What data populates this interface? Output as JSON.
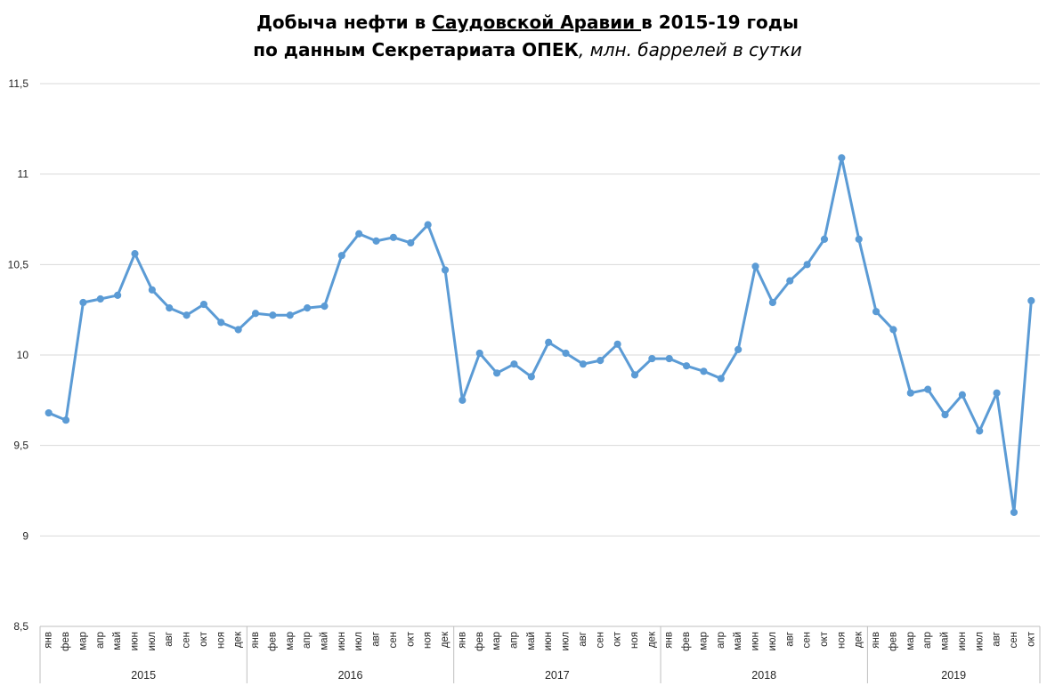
{
  "title": {
    "line1_a": "Добыча нефти в ",
    "line1_b": "Саудовской Аравии ",
    "line1_c": "в 2015-19 годы",
    "line2_a": "по данным Секретариата ОПЕК",
    "line2_b": ", млн. баррелей в сутки"
  },
  "chart_data": {
    "type": "line",
    "title": "Добыча нефти в Саудовской Аравии в 2015-19 годы по данным Секретариата ОПЕК, млн. баррелей в сутки",
    "ylim": [
      8.5,
      11.5
    ],
    "yticks": [
      "8,5",
      "9",
      "9,5",
      "10",
      "10,5",
      "11",
      "11,5"
    ],
    "ytick_values": [
      8.5,
      9,
      9.5,
      10,
      10.5,
      11,
      11.5
    ],
    "grid": true,
    "line_color": "#5b9bd5",
    "grid_color": "#d9d9d9",
    "axis_color": "#bfbfbf",
    "years": [
      {
        "label": "2015",
        "count": 12
      },
      {
        "label": "2016",
        "count": 12
      },
      {
        "label": "2017",
        "count": 12
      },
      {
        "label": "2018",
        "count": 12
      },
      {
        "label": "2019",
        "count": 10
      }
    ],
    "categories": [
      "янв",
      "фев",
      "мар",
      "апр",
      "май",
      "июн",
      "июл",
      "авг",
      "сен",
      "окт",
      "ноя",
      "дек",
      "янв",
      "фев",
      "мар",
      "апр",
      "май",
      "июн",
      "июл",
      "авг",
      "сен",
      "окт",
      "ноя",
      "дек",
      "янв",
      "фев",
      "мар",
      "апр",
      "май",
      "июн",
      "июл",
      "авг",
      "сен",
      "окт",
      "ноя",
      "дек",
      "янв",
      "фев",
      "мар",
      "апр",
      "май",
      "июн",
      "июл",
      "авг",
      "сен",
      "окт",
      "ноя",
      "дек",
      "янв",
      "фев",
      "мар",
      "апр",
      "май",
      "июн",
      "июл",
      "авг",
      "сен",
      "окт"
    ],
    "series": [
      {
        "values": [
          9.68,
          9.64,
          10.29,
          10.31,
          10.33,
          10.56,
          10.36,
          10.26,
          10.22,
          10.28,
          10.18,
          10.14,
          10.23,
          10.22,
          10.22,
          10.26,
          10.27,
          10.55,
          10.67,
          10.63,
          10.65,
          10.62,
          10.72,
          10.47,
          9.75,
          10.01,
          9.9,
          9.95,
          9.88,
          10.07,
          10.01,
          9.95,
          9.97,
          10.06,
          9.89,
          9.98,
          9.98,
          9.94,
          9.91,
          9.87,
          10.03,
          10.49,
          10.29,
          10.41,
          10.5,
          10.64,
          11.09,
          10.64,
          10.24,
          10.14,
          9.79,
          9.81,
          9.67,
          9.78,
          9.58,
          9.79,
          9.13,
          10.3
        ]
      }
    ]
  }
}
